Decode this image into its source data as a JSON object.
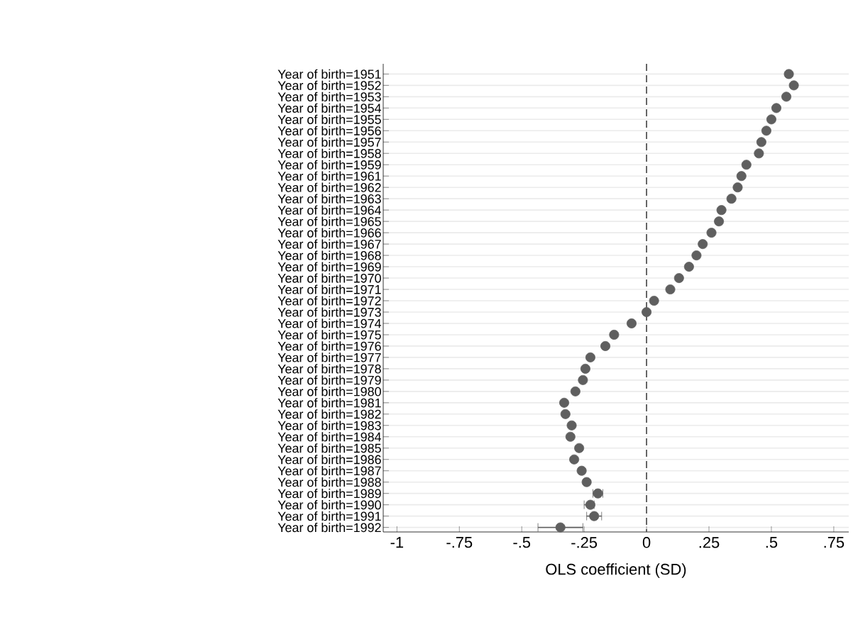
{
  "chart_data": {
    "type": "scatter",
    "orientation": "horizontal",
    "xlabel": "OLS coefficient (SD)",
    "categories": [
      "Year of birth=1951",
      "Year of birth=1952",
      "Year of birth=1953",
      "Year of birth=1954",
      "Year of birth=1955",
      "Year of birth=1956",
      "Year of birth=1957",
      "Year of birth=1958",
      "Year of birth=1959",
      "Year of birth=1961",
      "Year of birth=1962",
      "Year of birth=1963",
      "Year of birth=1964",
      "Year of birth=1965",
      "Year of birth=1966",
      "Year of birth=1967",
      "Year of birth=1968",
      "Year of birth=1969",
      "Year of birth=1970",
      "Year of birth=1971",
      "Year of birth=1972",
      "Year of birth=1973",
      "Year of birth=1974",
      "Year of birth=1975",
      "Year of birth=1976",
      "Year of birth=1977",
      "Year of birth=1978",
      "Year of birth=1979",
      "Year of birth=1980",
      "Year of birth=1981",
      "Year of birth=1982",
      "Year of birth=1983",
      "Year of birth=1984",
      "Year of birth=1985",
      "Year of birth=1986",
      "Year of birth=1987",
      "Year of birth=1988",
      "Year of birth=1989",
      "Year of birth=1990",
      "Year of birth=1991",
      "Year of birth=1992"
    ],
    "values": [
      0.57,
      0.59,
      0.56,
      0.52,
      0.5,
      0.48,
      0.46,
      0.45,
      0.4,
      0.38,
      0.365,
      0.34,
      0.3,
      0.29,
      0.26,
      0.225,
      0.2,
      0.17,
      0.13,
      0.095,
      0.03,
      0.0,
      -0.06,
      -0.13,
      -0.165,
      -0.225,
      -0.245,
      -0.255,
      -0.285,
      -0.33,
      -0.325,
      -0.3,
      -0.305,
      -0.27,
      -0.29,
      -0.26,
      -0.24,
      -0.195,
      -0.225,
      -0.21,
      -0.345
    ],
    "errors": [
      null,
      null,
      null,
      null,
      null,
      null,
      null,
      null,
      null,
      null,
      null,
      null,
      null,
      null,
      null,
      null,
      null,
      null,
      null,
      null,
      null,
      null,
      null,
      null,
      null,
      null,
      null,
      null,
      null,
      null,
      null,
      null,
      null,
      null,
      null,
      null,
      null,
      [
        -0.215,
        -0.175
      ],
      [
        -0.25,
        -0.21
      ],
      [
        -0.24,
        -0.18
      ],
      [
        -0.435,
        -0.255
      ]
    ],
    "color": "#5f5f5f",
    "grid": "y",
    "xlim": [
      -1.055,
      0.81
    ],
    "xticks": [
      -1,
      {
        "value": -0.75,
        "label": "-.75"
      },
      {
        "value": -0.5,
        "label": "-.5"
      },
      {
        "value": -0.25,
        "label": "-.25"
      },
      0,
      {
        "value": 0.25,
        "label": ".25"
      },
      {
        "value": 0.5,
        "label": ".5"
      },
      {
        "value": 0.75,
        "label": ".75"
      }
    ],
    "ref_lines": [
      {
        "axis": "x",
        "value": 0,
        "line_style": "dashed"
      }
    ]
  }
}
